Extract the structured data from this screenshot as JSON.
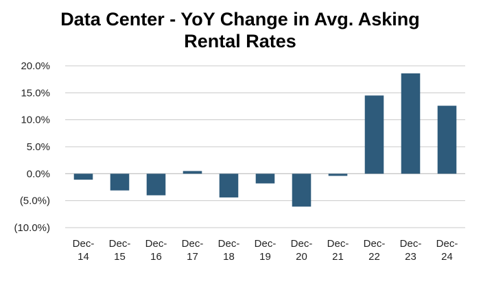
{
  "chart_data": {
    "type": "bar",
    "title": "Data Center - YoY Change in Avg. Asking Rental Rates",
    "title_lines": [
      "Data Center - YoY Change in Avg. Asking",
      "Rental Rates"
    ],
    "categories": [
      "Dec-14",
      "Dec-15",
      "Dec-16",
      "Dec-17",
      "Dec-18",
      "Dec-19",
      "Dec-20",
      "Dec-21",
      "Dec-22",
      "Dec-23",
      "Dec-24"
    ],
    "category_lines": [
      [
        "Dec-",
        "14"
      ],
      [
        "Dec-",
        "15"
      ],
      [
        "Dec-",
        "16"
      ],
      [
        "Dec-",
        "17"
      ],
      [
        "Dec-",
        "18"
      ],
      [
        "Dec-",
        "19"
      ],
      [
        "Dec-",
        "20"
      ],
      [
        "Dec-",
        "21"
      ],
      [
        "Dec-",
        "22"
      ],
      [
        "Dec-",
        "23"
      ],
      [
        "Dec-",
        "24"
      ]
    ],
    "values": [
      -1.1,
      -3.1,
      -4.0,
      0.5,
      -4.4,
      -1.8,
      -6.1,
      -0.4,
      14.5,
      18.6,
      12.6
    ],
    "xlabel": "",
    "ylabel": "",
    "ylim": [
      -10,
      20
    ],
    "yticks": [
      20,
      15,
      10,
      5,
      0,
      -5,
      -10
    ],
    "ytick_labels": [
      "20.0%",
      "15.0%",
      "10.0%",
      "5.0%",
      "0.0%",
      "(5.0%)",
      "(10.0%)"
    ],
    "grid": true,
    "bar_color": "#2e5b7b",
    "grid_color": "#c8c8c8"
  }
}
